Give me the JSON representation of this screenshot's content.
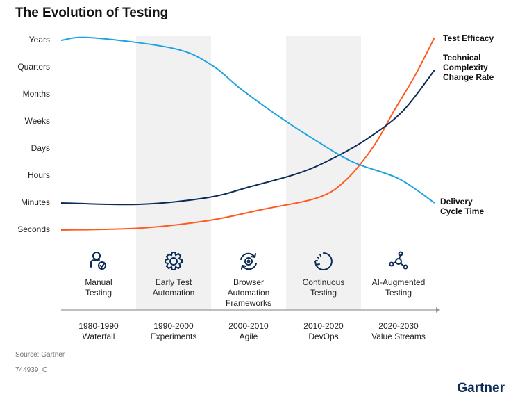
{
  "chart_data": {
    "type": "line",
    "title": "The Evolution of Testing",
    "y_levels": [
      "Seconds",
      "Minutes",
      "Hours",
      "Days",
      "Weeks",
      "Months",
      "Quarters",
      "Years"
    ],
    "eras": [
      {
        "stage": "Manual\nTesting",
        "years": "1980-1990",
        "name": "Waterfall",
        "icon": "person-check-icon",
        "shaded": false
      },
      {
        "stage": "Early Test\nAutomation",
        "years": "1990-2000",
        "name": "Experiments",
        "icon": "gear-icon",
        "shaded": true
      },
      {
        "stage": "Browser\nAutomation\nFrameworks",
        "years": "2000-2010",
        "name": "Agile",
        "icon": "gear-cycle-icon",
        "shaded": false
      },
      {
        "stage": "Continuous\nTesting",
        "years": "2010-2020",
        "name": "DevOps",
        "icon": "circular-arrow-icon",
        "shaded": true
      },
      {
        "stage": "AI-Augmented\nTesting",
        "years": "2020-2030",
        "name": "Value Streams",
        "icon": "network-node-icon",
        "shaded": false
      }
    ],
    "xlim": [
      0,
      5
    ],
    "ylim": [
      0,
      7
    ],
    "series": [
      {
        "name": "Test Efficacy",
        "color": "#ff5a1f",
        "points": [
          [
            0,
            0
          ],
          [
            1.04,
            0.07
          ],
          [
            1.96,
            0.35
          ],
          [
            2.7,
            0.77
          ],
          [
            3.43,
            1.2
          ],
          [
            3.8,
            1.85
          ],
          [
            4.17,
            3.1
          ],
          [
            4.44,
            4.4
          ],
          [
            4.72,
            5.7
          ],
          [
            4.98,
            7.1
          ]
        ]
      },
      {
        "name": "Technical Complexity Change Rate",
        "color": "#0b2a55",
        "points": [
          [
            0,
            1.0
          ],
          [
            1.04,
            0.95
          ],
          [
            1.96,
            1.2
          ],
          [
            2.52,
            1.6
          ],
          [
            3.17,
            2.1
          ],
          [
            3.63,
            2.65
          ],
          [
            4.1,
            3.4
          ],
          [
            4.56,
            4.4
          ],
          [
            4.98,
            5.9
          ]
        ]
      },
      {
        "name": "Delivery Cycle Time",
        "color": "#1fa3e0",
        "points": [
          [
            0,
            7
          ],
          [
            0.4,
            7.1
          ],
          [
            1.5,
            6.7
          ],
          [
            2,
            6.1
          ],
          [
            2.4,
            5.2
          ],
          [
            2.9,
            4.2
          ],
          [
            3.4,
            3.3
          ],
          [
            3.9,
            2.5
          ],
          [
            4.5,
            1.9
          ],
          [
            4.98,
            1.0
          ]
        ]
      }
    ],
    "series_labels": [
      "Test Efficacy",
      "Technical\nComplexity\nChange Rate",
      "Delivery\nCycle Time"
    ]
  },
  "source": "Source: Gartner",
  "code": "744939_C",
  "logo": "Gartner"
}
